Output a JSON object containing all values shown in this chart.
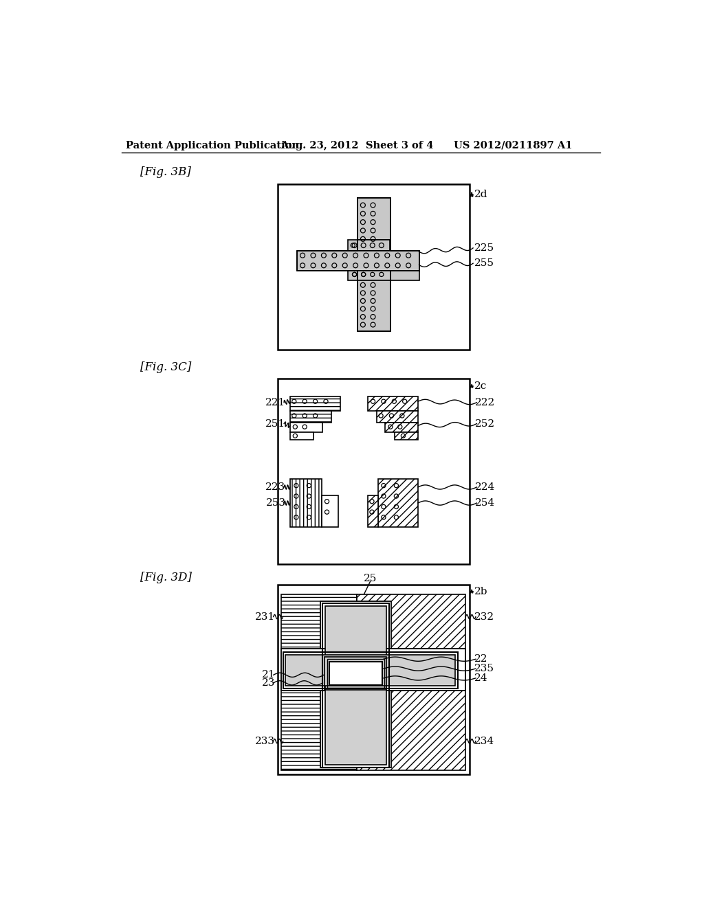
{
  "title_left": "Patent Application Publication",
  "title_mid": "Aug. 23, 2012  Sheet 3 of 4",
  "title_right": "US 2012/0211897 A1",
  "fig3B_label": "[Fig. 3B]",
  "fig3C_label": "[Fig. 3C]",
  "fig3D_label": "[Fig. 3D]",
  "bg_color": "#ffffff",
  "line_color": "#000000"
}
